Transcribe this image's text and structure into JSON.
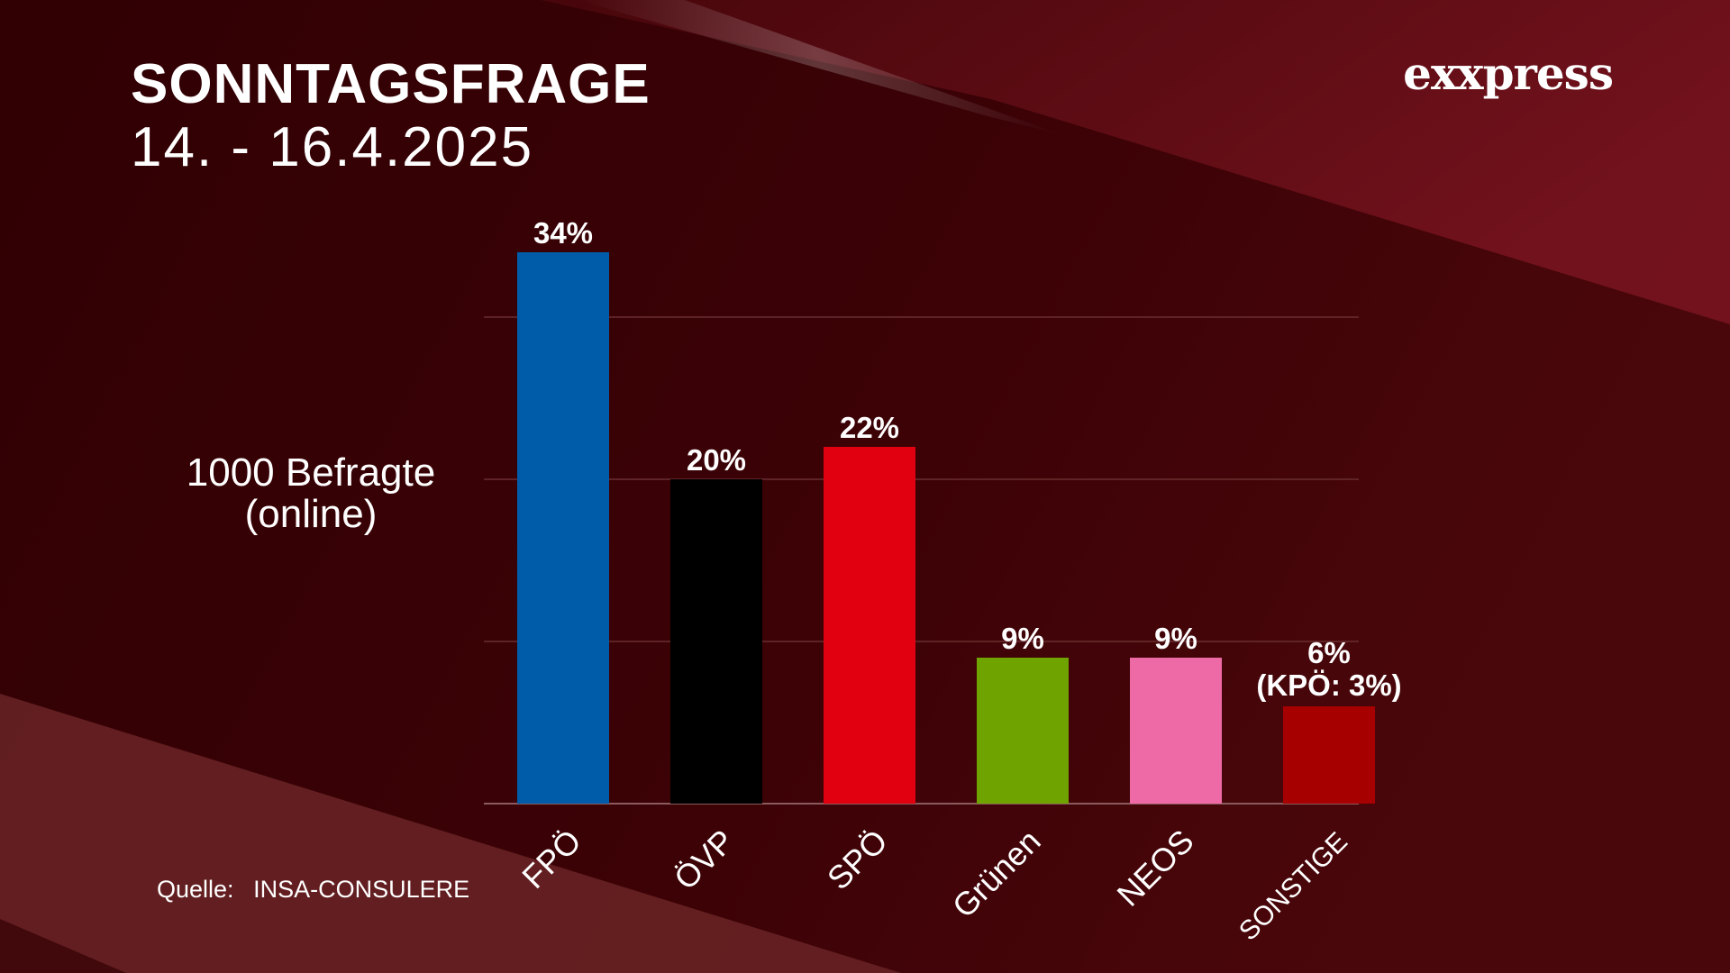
{
  "header": {
    "title": "SONNTAGSFRAGE",
    "date": "14. - 16.4.2025",
    "logo": "exxpress"
  },
  "sample": {
    "line1": "1000 Befragte",
    "line2": "(online)"
  },
  "source": {
    "label": "Quelle:",
    "value": "INSA-CONSULERE"
  },
  "chart_data": {
    "type": "bar",
    "title": "SONNTAGSFRAGE",
    "subtitle": "14. - 16.4.2025",
    "categories": [
      "FPÖ",
      "ÖVP",
      "SPÖ",
      "Grünen",
      "NEOS",
      "SONSTIGE"
    ],
    "values": [
      34,
      20,
      22,
      9,
      9,
      6
    ],
    "data_labels": [
      "34%",
      "20%",
      "22%",
      "9%",
      "9%",
      "6%"
    ],
    "extra_labels": [
      "",
      "",
      "",
      "",
      "",
      "(KPÖ: 3%)"
    ],
    "colors": [
      "#005ca9",
      "#000000",
      "#e1000f",
      "#6fa300",
      "#ee6aa7",
      "#a60000"
    ],
    "ylim": [
      0,
      35
    ],
    "gridlines": [
      0,
      10,
      20,
      30
    ],
    "grid": true,
    "xlabel": "",
    "ylabel": ""
  }
}
